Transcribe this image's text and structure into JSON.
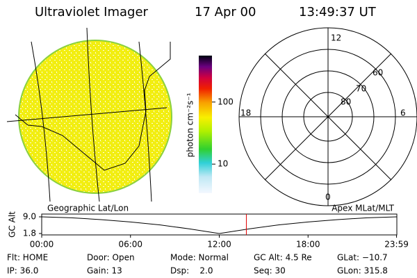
{
  "header": {
    "title": "Ultraviolet Imager",
    "date": "17 Apr 00",
    "time": "13:49:37 UT"
  },
  "colorbar": {
    "label": "photon cm⁻²s⁻¹",
    "log": true,
    "lim": [
      3.4,
      560
    ],
    "ticks": [
      10,
      100
    ]
  },
  "polar": {
    "top": "12",
    "bottom": "0",
    "left": "18",
    "right": "6",
    "rings": [
      "60",
      "70",
      "80"
    ]
  },
  "timeline": {
    "left_label": "Geographic Lat/Lon",
    "right_label": "Apex MLat/MLT",
    "y_label": "GC Alt",
    "ylim": [
      1.2,
      10.2
    ],
    "yticks": [
      {
        "value": 9,
        "label": "9.0"
      },
      {
        "value": 1.8,
        "label": "1.8"
      }
    ],
    "xlim": [
      0,
      24
    ],
    "xticks": [
      {
        "value": 0,
        "label": "00:00"
      },
      {
        "value": 6,
        "label": "06:00"
      },
      {
        "value": 12,
        "label": "12:00"
      },
      {
        "value": 18,
        "label": "18:00"
      },
      {
        "value": 23.98,
        "label": "23:59"
      }
    ],
    "x": [
      0,
      2,
      4,
      6,
      8,
      10,
      12,
      14,
      16,
      18,
      20,
      22,
      23.98
    ],
    "y": [
      9.0,
      8.6,
      7.8,
      6.8,
      5.5,
      3.8,
      1.8,
      3.8,
      5.5,
      6.8,
      7.8,
      8.6,
      9.0
    ],
    "marker_x": 13.83
  },
  "footer": {
    "rows": [
      [
        "Flt: HOME",
        "Door: Open",
        "Mode: Normal",
        "GC Alt: 4.5 Re",
        "GLat: −10.7"
      ],
      [
        "IP: 36.0",
        "Gain: 13",
        "Dsp:    2.0",
        "Seq: 30",
        "GLon: 315.8"
      ]
    ]
  }
}
